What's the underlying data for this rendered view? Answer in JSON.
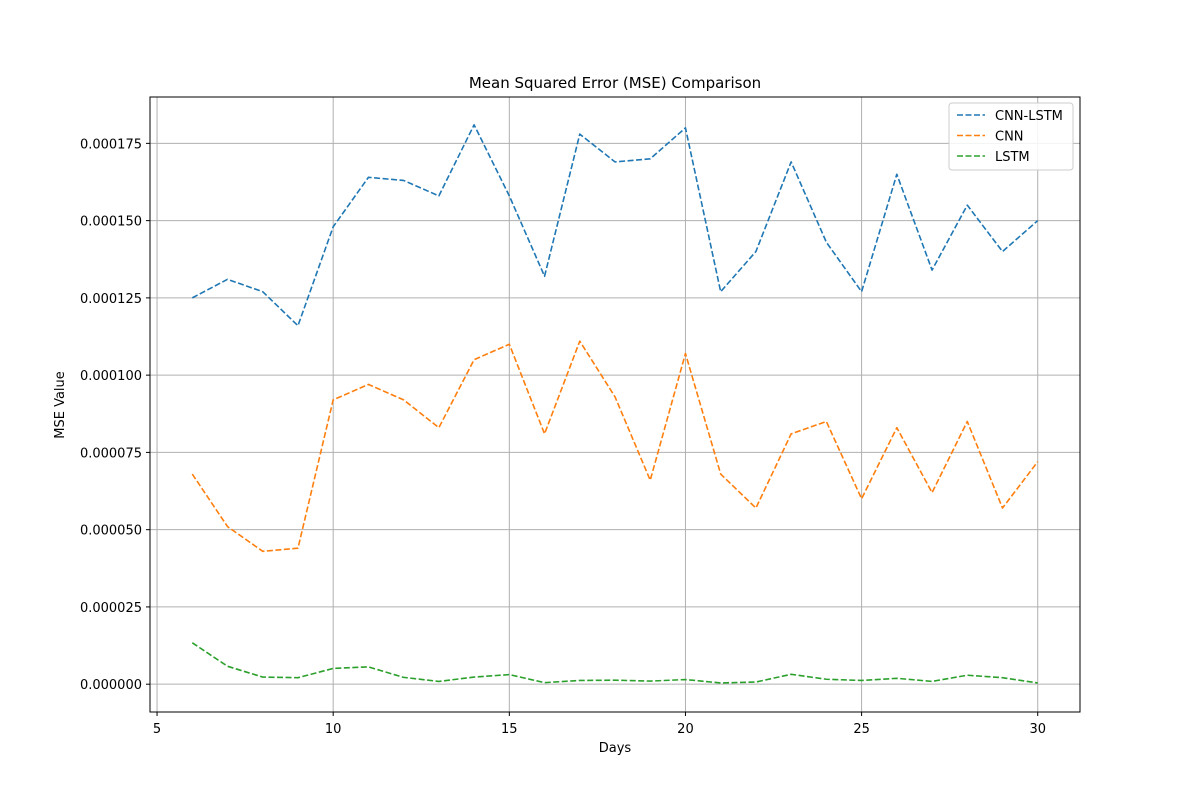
{
  "chart_data": {
    "type": "line",
    "title": "Mean Squared Error (MSE) Comparison",
    "xlabel": "Days",
    "ylabel": "MSE Value",
    "xlim": [
      4.8,
      31.2
    ],
    "ylim": [
      -9e-06,
      0.00019
    ],
    "xticks": [
      5,
      10,
      15,
      20,
      25,
      30
    ],
    "yticks": [
      0.0,
      2.5e-05,
      5e-05,
      7.5e-05,
      0.0001,
      0.000125,
      0.00015,
      0.000175
    ],
    "ytick_labels": [
      "0.000000",
      "0.000025",
      "0.000050",
      "0.000075",
      "0.000100",
      "0.000125",
      "0.000150",
      "0.000175"
    ],
    "grid": true,
    "legend_position": "top-right",
    "line_style": "dashed",
    "x": [
      6,
      7,
      8,
      9,
      10,
      11,
      12,
      13,
      14,
      15,
      16,
      17,
      18,
      19,
      20,
      21,
      22,
      23,
      24,
      25,
      26,
      27,
      28,
      29,
      30
    ],
    "series": [
      {
        "name": "CNN-LSTM",
        "color": "#1f77b4",
        "values": [
          0.000125,
          0.000131,
          0.000127,
          0.000116,
          0.000148,
          0.000164,
          0.000163,
          0.000158,
          0.000181,
          0.000158,
          0.000132,
          0.000178,
          0.000169,
          0.00017,
          0.00018,
          0.000127,
          0.00014,
          0.000169,
          0.000143,
          0.000127,
          0.000165,
          0.000134,
          0.000155,
          0.00014,
          0.00015
        ]
      },
      {
        "name": "CNN",
        "color": "#ff7f0e",
        "values": [
          6.8e-05,
          5.1e-05,
          4.3e-05,
          4.4e-05,
          9.2e-05,
          9.7e-05,
          9.2e-05,
          8.3e-05,
          0.000105,
          0.00011,
          8.1e-05,
          0.000111,
          9.3e-05,
          6.6e-05,
          0.000107,
          6.8e-05,
          5.7e-05,
          8.1e-05,
          8.5e-05,
          6e-05,
          8.3e-05,
          6.2e-05,
          8.5e-05,
          5.7e-05,
          7.2e-05
        ]
      },
      {
        "name": "LSTM",
        "color": "#2ca02c",
        "values": [
          1.34e-05,
          5.8e-06,
          2.3e-06,
          2.1e-06,
          5.1e-06,
          5.6e-06,
          2.2e-06,
          9e-07,
          2.3e-06,
          3.1e-06,
          5e-07,
          1.2e-06,
          1.3e-06,
          1e-06,
          1.5e-06,
          4e-07,
          7e-07,
          3.2e-06,
          1.6e-06,
          1.2e-06,
          1.9e-06,
          9e-07,
          2.9e-06,
          2.1e-06,
          4e-07
        ]
      }
    ]
  }
}
